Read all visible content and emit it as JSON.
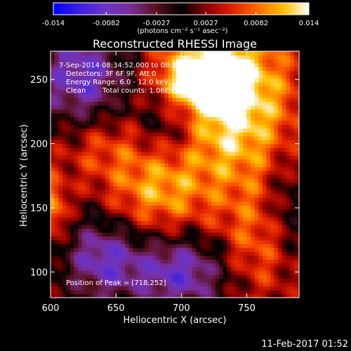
{
  "chart_data": {
    "type": "heatmap",
    "title": "Reconstructed RHESSI Image",
    "xlabel": "Heliocentric X (arcsec)",
    "ylabel": "Heliocentric Y (arcsec)",
    "xlim": [
      600,
      790
    ],
    "ylim": [
      80,
      272
    ],
    "xticks": [
      600,
      650,
      700,
      750
    ],
    "yticks": [
      100,
      150,
      200,
      250
    ],
    "colorbar": {
      "min": -0.014,
      "max": 0.014,
      "ticks": [
        "-0.014",
        "-0.0082",
        "-0.0027",
        "0.0027",
        "0.0082",
        "0.014"
      ],
      "tick_values": [
        -0.014,
        -0.0082,
        -0.0027,
        0.0027,
        0.0082,
        0.014
      ],
      "units_label": "(photons cm⁻² s⁻¹ asec⁻²)",
      "colors": [
        "#0000ff",
        "#3a1ee0",
        "#6a34c8",
        "#7a2e9a",
        "#5a1020",
        "#000000",
        "#8a0000",
        "#e02000",
        "#ff6a00",
        "#ffc000",
        "#ffffff"
      ]
    },
    "annotations": {
      "time_range": "7-Sep-2014 08:34:52.000 to 08:35:52.000",
      "detectors": "Detectors: 3F 6F 9F, Att 0",
      "energy_range": "Energy Range: 6.0 - 12.0 keV",
      "clean": "Clean",
      "total_counts": "Total counts: 1.06E+05",
      "peak": "Position of Peak = [718,252]"
    },
    "peak": [
      718,
      252
    ],
    "features": [
      {
        "kind": "source",
        "x": 735,
        "y": 232,
        "sx": 38,
        "sy": 48,
        "amp": 0.013
      },
      {
        "kind": "source",
        "x": 718,
        "y": 252,
        "sx": 22,
        "sy": 16,
        "amp": 0.009
      },
      {
        "kind": "source",
        "x": 680,
        "y": 160,
        "sx": 26,
        "sy": 22,
        "amp": 0.007
      },
      {
        "kind": "source",
        "x": 640,
        "y": 200,
        "sx": 28,
        "sy": 22,
        "amp": 0.006
      },
      {
        "kind": "source",
        "x": 760,
        "y": 120,
        "sx": 24,
        "sy": 32,
        "amp": 0.006
      },
      {
        "kind": "source",
        "x": 602,
        "y": 150,
        "sx": 8,
        "sy": 18,
        "amp": 0.008
      },
      {
        "kind": "negative",
        "x": 625,
        "y": 250,
        "sx": 25,
        "sy": 30,
        "amp": -0.01
      },
      {
        "kind": "negative",
        "x": 640,
        "y": 110,
        "sx": 20,
        "sy": 22,
        "amp": -0.009
      },
      {
        "kind": "negative",
        "x": 700,
        "y": 100,
        "sx": 26,
        "sy": 20,
        "amp": -0.01
      },
      {
        "kind": "negative",
        "x": 690,
        "y": 215,
        "sx": 20,
        "sy": 18,
        "amp": -0.007
      },
      {
        "kind": "negative",
        "x": 780,
        "y": 150,
        "sx": 12,
        "sy": 30,
        "amp": -0.005
      }
    ]
  },
  "timestamp": "11-Feb-2017 01:52"
}
